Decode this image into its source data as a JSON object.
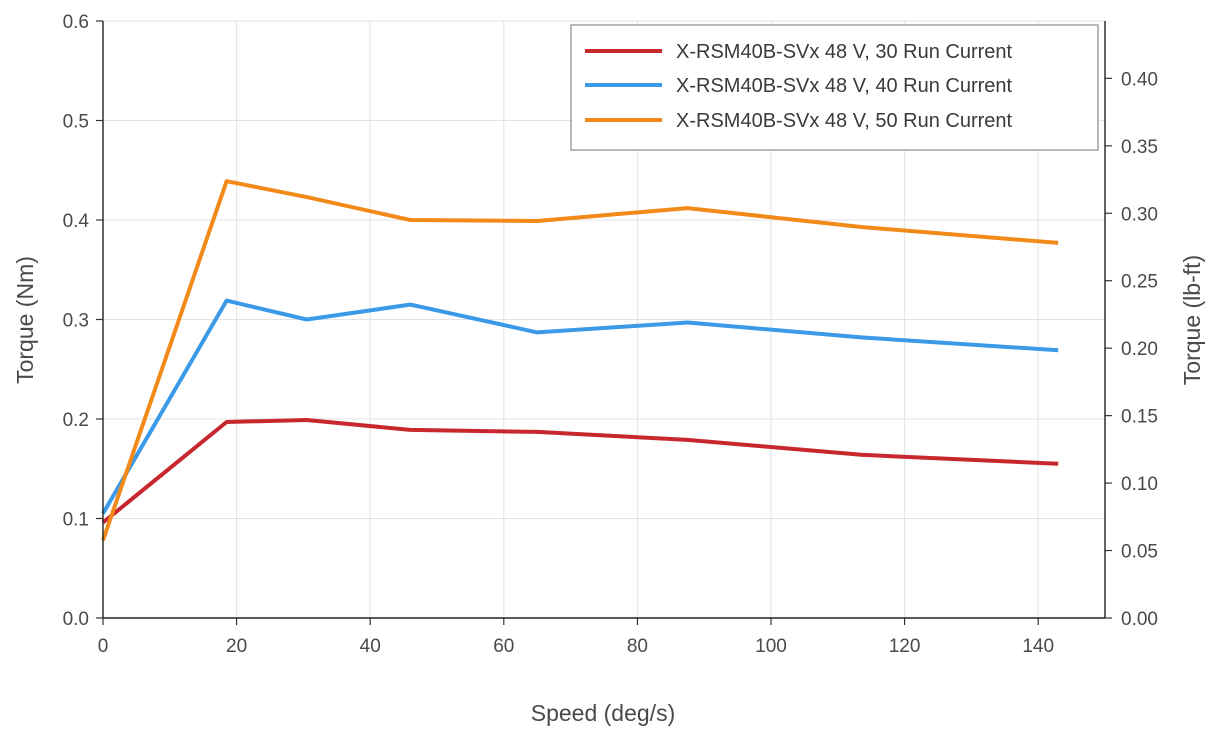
{
  "chart_data": {
    "type": "line",
    "title": "",
    "xlabel": "Speed (deg/s)",
    "ylabel": "Torque (Nm)",
    "y2label": "Torque (lb-ft)",
    "xlim": [
      0,
      150
    ],
    "ylim": [
      0,
      0.6
    ],
    "y2lim": [
      0,
      0.4425
    ],
    "xticks": [
      "0",
      "20",
      "40",
      "60",
      "80",
      "100",
      "120",
      "140"
    ],
    "yticks": [
      "0.0",
      "0.1",
      "0.2",
      "0.3",
      "0.4",
      "0.5",
      "0.6"
    ],
    "y2ticks": [
      "0.00",
      "0.05",
      "0.10",
      "0.15",
      "0.20",
      "0.25",
      "0.30",
      "0.35",
      "0.40"
    ],
    "grid": true,
    "legend_position": "top-right",
    "series": [
      {
        "name": "X-RSM40B-SVx 48 V, 30 Run Current",
        "color": "#c8272d",
        "x": [
          0,
          18.5,
          30.5,
          46,
          65,
          87.5,
          113.5,
          143
        ],
        "y": [
          0.096,
          0.197,
          0.199,
          0.189,
          0.187,
          0.179,
          0.164,
          0.155
        ]
      },
      {
        "name": "X-RSM40B-SVx 48 V, 40 Run Current",
        "color": "#3b9ae8",
        "x": [
          0,
          18.5,
          30.5,
          46,
          65,
          87.5,
          113.5,
          143
        ],
        "y": [
          0.105,
          0.319,
          0.3,
          0.315,
          0.287,
          0.297,
          0.282,
          0.269
        ]
      },
      {
        "name": "X-RSM40B-SVx 48 V, 50 Run Current",
        "color": "#f28a1a",
        "x": [
          0,
          18.5,
          30.5,
          46,
          65,
          87.5,
          113.5,
          143
        ],
        "y": [
          0.078,
          0.439,
          0.423,
          0.4,
          0.399,
          0.412,
          0.393,
          0.377
        ]
      }
    ]
  }
}
